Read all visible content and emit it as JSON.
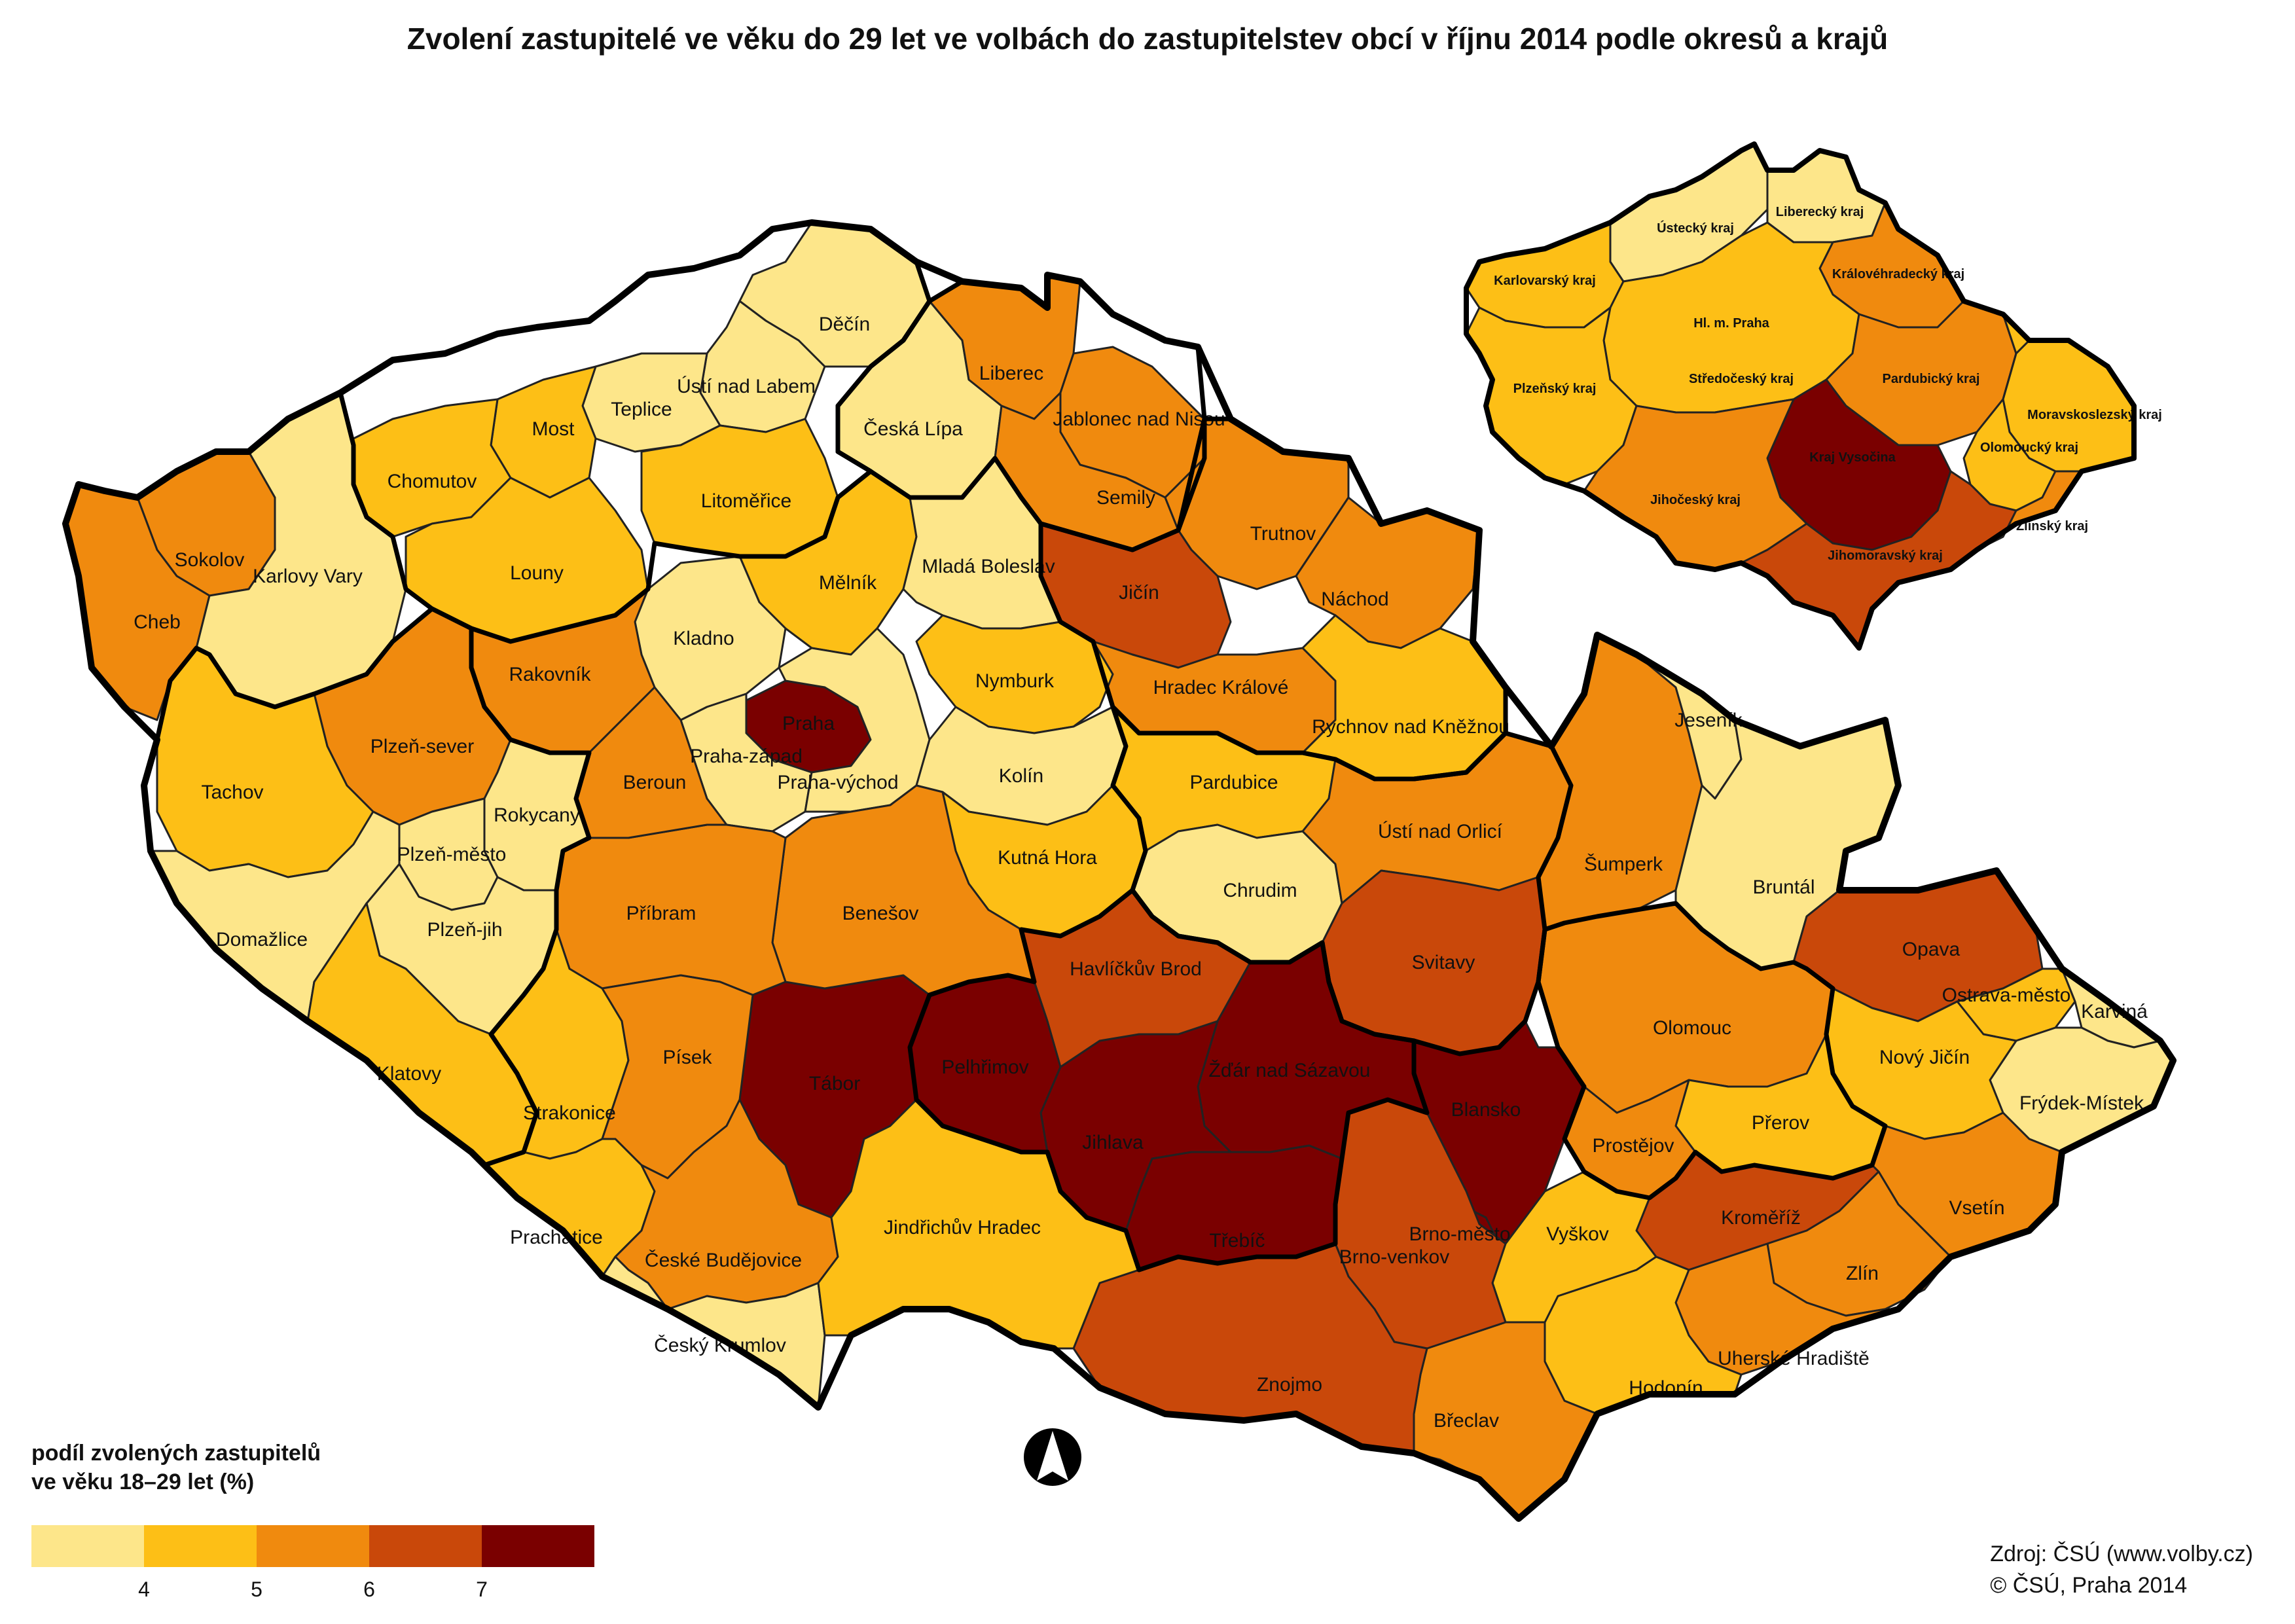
{
  "title": "Zvolení zastupitelé ve věku do 29 let ve volbách do zastupitelstev obcí v říjnu 2014 podle okresů a krajů",
  "legend": {
    "title_line1": "podíl zvolených zastupitelů",
    "title_line2": "ve věku 18–29 let (%)",
    "classes": [
      {
        "color": "#fde68a"
      },
      {
        "color": "#fdbf16"
      },
      {
        "color": "#f08a0e"
      },
      {
        "color": "#c9480a"
      },
      {
        "color": "#7a0000"
      }
    ],
    "ticks": [
      "4",
      "5",
      "6",
      "7"
    ]
  },
  "source": {
    "line1": "Zdroj: ČSÚ (www.volby.cz)",
    "line2": "© ČSÚ, Praha 2014"
  },
  "districts": [
    {
      "name": "Děčín",
      "class": 0
    },
    {
      "name": "Ústí nad Labem",
      "class": 0
    },
    {
      "name": "Teplice",
      "class": 0
    },
    {
      "name": "Most",
      "class": 1
    },
    {
      "name": "Chomutov",
      "class": 1
    },
    {
      "name": "Česká Lípa",
      "class": 0
    },
    {
      "name": "Liberec",
      "class": 2
    },
    {
      "name": "Jablonec nad Nisou",
      "class": 2
    },
    {
      "name": "Semily",
      "class": 2
    },
    {
      "name": "Trutnov",
      "class": 2
    },
    {
      "name": "Náchod",
      "class": 2
    },
    {
      "name": "Jičín",
      "class": 3
    },
    {
      "name": "Hradec Králové",
      "class": 2
    },
    {
      "name": "Rychnov nad Kněžnou",
      "class": 1
    },
    {
      "name": "Sokolov",
      "class": 2
    },
    {
      "name": "Cheb",
      "class": 2
    },
    {
      "name": "Karlovy Vary",
      "class": 0
    },
    {
      "name": "Louny",
      "class": 1
    },
    {
      "name": "Litoměřice",
      "class": 1
    },
    {
      "name": "Mělník",
      "class": 1
    },
    {
      "name": "Mladá Boleslav",
      "class": 0
    },
    {
      "name": "Kladno",
      "class": 0
    },
    {
      "name": "Rakovník",
      "class": 2
    },
    {
      "name": "Praha",
      "class": 4
    },
    {
      "name": "Praha-západ",
      "class": 0
    },
    {
      "name": "Praha-východ",
      "class": 0
    },
    {
      "name": "Nymburk",
      "class": 1
    },
    {
      "name": "Kolín",
      "class": 0
    },
    {
      "name": "Kutná Hora",
      "class": 1
    },
    {
      "name": "Pardubice",
      "class": 1
    },
    {
      "name": "Chrudim",
      "class": 0
    },
    {
      "name": "Ústí nad Orlicí",
      "class": 2
    },
    {
      "name": "Svitavy",
      "class": 3
    },
    {
      "name": "Šumperk",
      "class": 2
    },
    {
      "name": "Jeseník",
      "class": 0
    },
    {
      "name": "Bruntál",
      "class": 0
    },
    {
      "name": "Opava",
      "class": 3
    },
    {
      "name": "Ostrava-město",
      "class": 1
    },
    {
      "name": "Karviná",
      "class": 0
    },
    {
      "name": "Frýdek-Místek",
      "class": 0
    },
    {
      "name": "Nový Jičín",
      "class": 1
    },
    {
      "name": "Olomouc",
      "class": 2
    },
    {
      "name": "Přerov",
      "class": 1
    },
    {
      "name": "Prostějov",
      "class": 2
    },
    {
      "name": "Vsetín",
      "class": 2
    },
    {
      "name": "Kroměříž",
      "class": 3
    },
    {
      "name": "Zlín",
      "class": 2
    },
    {
      "name": "Uherské Hradiště",
      "class": 2
    },
    {
      "name": "Hodonín",
      "class": 1
    },
    {
      "name": "Břeclav",
      "class": 2
    },
    {
      "name": "Vyškov",
      "class": 1
    },
    {
      "name": "Blansko",
      "class": 4
    },
    {
      "name": "Brno-město",
      "class": 4
    },
    {
      "name": "Brno-venkov",
      "class": 3
    },
    {
      "name": "Znojmo",
      "class": 3
    },
    {
      "name": "Třebíč",
      "class": 4
    },
    {
      "name": "Žďár nad Sázavou",
      "class": 4
    },
    {
      "name": "Jihlava",
      "class": 4
    },
    {
      "name": "Havlíčkův Brod",
      "class": 3
    },
    {
      "name": "Pelhřimov",
      "class": 4
    },
    {
      "name": "Tábor",
      "class": 4
    },
    {
      "name": "Benešov",
      "class": 2
    },
    {
      "name": "Příbram",
      "class": 2
    },
    {
      "name": "Beroun",
      "class": 2
    },
    {
      "name": "Plzeň-sever",
      "class": 2
    },
    {
      "name": "Rokycany",
      "class": 0
    },
    {
      "name": "Plzeň-město",
      "class": 0
    },
    {
      "name": "Plzeň-jih",
      "class": 0
    },
    {
      "name": "Tachov",
      "class": 1
    },
    {
      "name": "Domažlice",
      "class": 0
    },
    {
      "name": "Klatovy",
      "class": 1
    },
    {
      "name": "Strakonice",
      "class": 1
    },
    {
      "name": "Písek",
      "class": 2
    },
    {
      "name": "Prachatice",
      "class": 1
    },
    {
      "name": "České Budějovice",
      "class": 2
    },
    {
      "name": "Český Krumlov",
      "class": 0
    },
    {
      "name": "Jindřichův Hradec",
      "class": 1
    }
  ],
  "regions": [
    {
      "name": "Ústecký kraj",
      "class": 0
    },
    {
      "name": "Liberecký kraj",
      "class": 0
    },
    {
      "name": "Karlovarský kraj",
      "class": 1
    },
    {
      "name": "Královéhradecký kraj",
      "class": 2
    },
    {
      "name": "Hl. m. Praha",
      "class": 4
    },
    {
      "name": "Středočeský kraj",
      "class": 1
    },
    {
      "name": "Pardubický kraj",
      "class": 2
    },
    {
      "name": "Plzeňský kraj",
      "class": 1
    },
    {
      "name": "Moravskoslezský kraj",
      "class": 1
    },
    {
      "name": "Olomoucký kraj",
      "class": 1
    },
    {
      "name": "Kraj Vysočina",
      "class": 4
    },
    {
      "name": "Jihočeský kraj",
      "class": 2
    },
    {
      "name": "Jihomoravský kraj",
      "class": 3
    },
    {
      "name": "Zlínský kraj",
      "class": 2
    }
  ]
}
